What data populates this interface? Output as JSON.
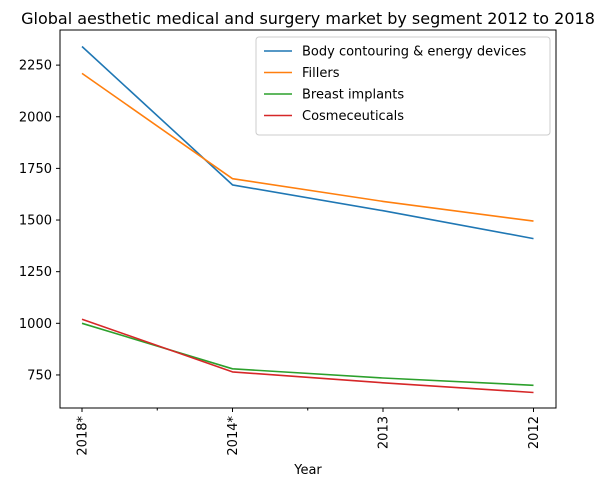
{
  "chart_data": {
    "type": "line",
    "title": "Global aesthetic medical and surgery market by segment 2012 to 2018",
    "xlabel": "Year",
    "ylabel": "",
    "categories": [
      "2018*",
      "2014*",
      "2013",
      "2012"
    ],
    "ylim": [
      590,
      2420
    ],
    "yticks": [
      750,
      1000,
      1250,
      1500,
      1750,
      2000,
      2250
    ],
    "grid": false,
    "legend_position": "top-right",
    "series": [
      {
        "name": "Body contouring & energy devices",
        "color": "#1f77b4",
        "values": [
          2340,
          1670,
          1545,
          1410
        ]
      },
      {
        "name": "Fillers",
        "color": "#ff7f0e",
        "values": [
          2210,
          1700,
          1590,
          1495
        ]
      },
      {
        "name": "Breast implants",
        "color": "#2ca02c",
        "values": [
          1000,
          780,
          735,
          700
        ]
      },
      {
        "name": "Cosmeceuticals",
        "color": "#d62728",
        "values": [
          1020,
          765,
          712,
          665
        ]
      }
    ]
  }
}
